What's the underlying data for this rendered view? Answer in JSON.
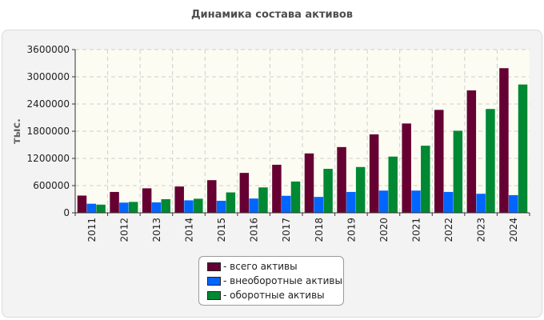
{
  "chart_data": {
    "type": "bar",
    "title": "Динамика состава активов",
    "ylabel": "тыс.",
    "xlabel": "",
    "ylim": [
      0,
      3600000
    ],
    "yticks": [
      0,
      600000,
      1200000,
      1800000,
      2400000,
      3000000,
      3600000
    ],
    "ytick_labels": [
      "0",
      "600000",
      "1200000",
      "1800000",
      "2400000",
      "3000000",
      "3600000"
    ],
    "categories": [
      "2011",
      "2012",
      "2013",
      "2014",
      "2015",
      "2016",
      "2017",
      "2018",
      "2019",
      "2020",
      "2021",
      "2022",
      "2023",
      "2024"
    ],
    "series": [
      {
        "name": "- всего активы",
        "color": "#660033",
        "values": [
          380000,
          460000,
          540000,
          580000,
          720000,
          880000,
          1060000,
          1310000,
          1450000,
          1730000,
          1970000,
          2270000,
          2700000,
          3190000
        ]
      },
      {
        "name": "- внеоборотные активы",
        "color": "#0066ff",
        "values": [
          200000,
          225000,
          230000,
          275000,
          265000,
          315000,
          375000,
          350000,
          460000,
          490000,
          490000,
          460000,
          420000,
          390000
        ]
      },
      {
        "name": "- оборотные активы",
        "color": "#008833",
        "values": [
          180000,
          240000,
          300000,
          310000,
          450000,
          560000,
          690000,
          970000,
          1010000,
          1240000,
          1480000,
          1810000,
          2290000,
          2830000
        ]
      }
    ],
    "grid": true,
    "legend": "bottom-center"
  }
}
